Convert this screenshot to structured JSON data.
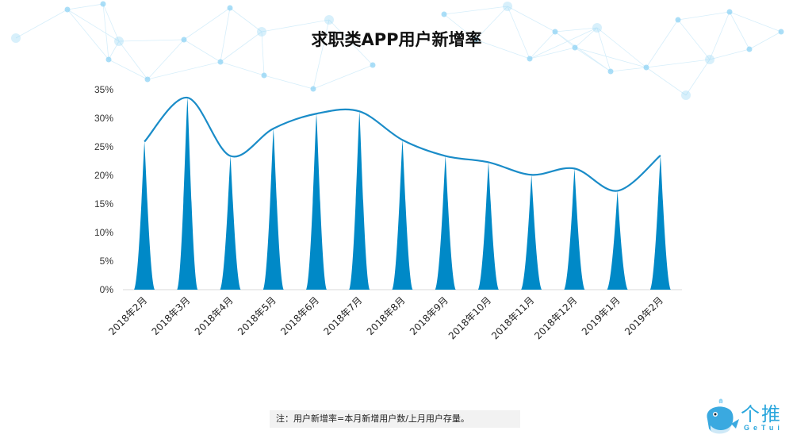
{
  "title": "求职类APP用户新增率",
  "note": "注：用户新增率=本月新增用户数/上月用户存量。",
  "logo": {
    "cn": "个推",
    "en": "GeTui"
  },
  "colors": {
    "series": "#0089c7",
    "line": "#1a8cc8",
    "axis": "#d9d9d9",
    "decoration": "#8fd3f4"
  },
  "chart_data": {
    "type": "bar",
    "bar_style": "spike",
    "title": "求职类APP用户新增率",
    "xlabel": "",
    "ylabel": "",
    "categories": [
      "2018年2月",
      "2018年3月",
      "2018年4月",
      "2018年5月",
      "2018年6月",
      "2018年7月",
      "2018年8月",
      "2018年9月",
      "2018年10月",
      "2018年11月",
      "2018年12月",
      "2019年1月",
      "2019年2月"
    ],
    "values": [
      25.9,
      33.6,
      23.4,
      28.2,
      30.8,
      31.2,
      26.2,
      23.4,
      22.3,
      20.1,
      21.2,
      17.3,
      23.5
    ],
    "overlay_line": "smoothed line through bar tops",
    "ylim": [
      0,
      35
    ],
    "yticks": [
      "0%",
      "5%",
      "10%",
      "15%",
      "20%",
      "25%",
      "30%",
      "35%"
    ],
    "ytick_values": [
      0,
      5,
      10,
      15,
      20,
      25,
      30,
      35
    ],
    "grid": false,
    "legend": "none"
  }
}
